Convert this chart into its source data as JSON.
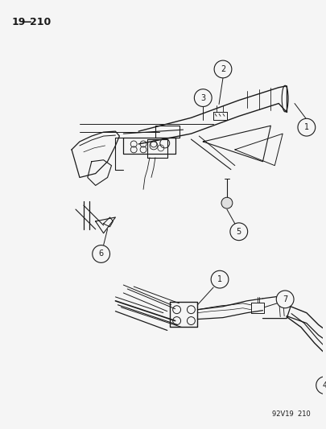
{
  "page_id": "19—2 10",
  "page_id_display": "19—210",
  "footer_code": "92V19  210",
  "bg_color": "#f0f0f0",
  "line_color": "#1a1a1a",
  "lw": 0.8
}
